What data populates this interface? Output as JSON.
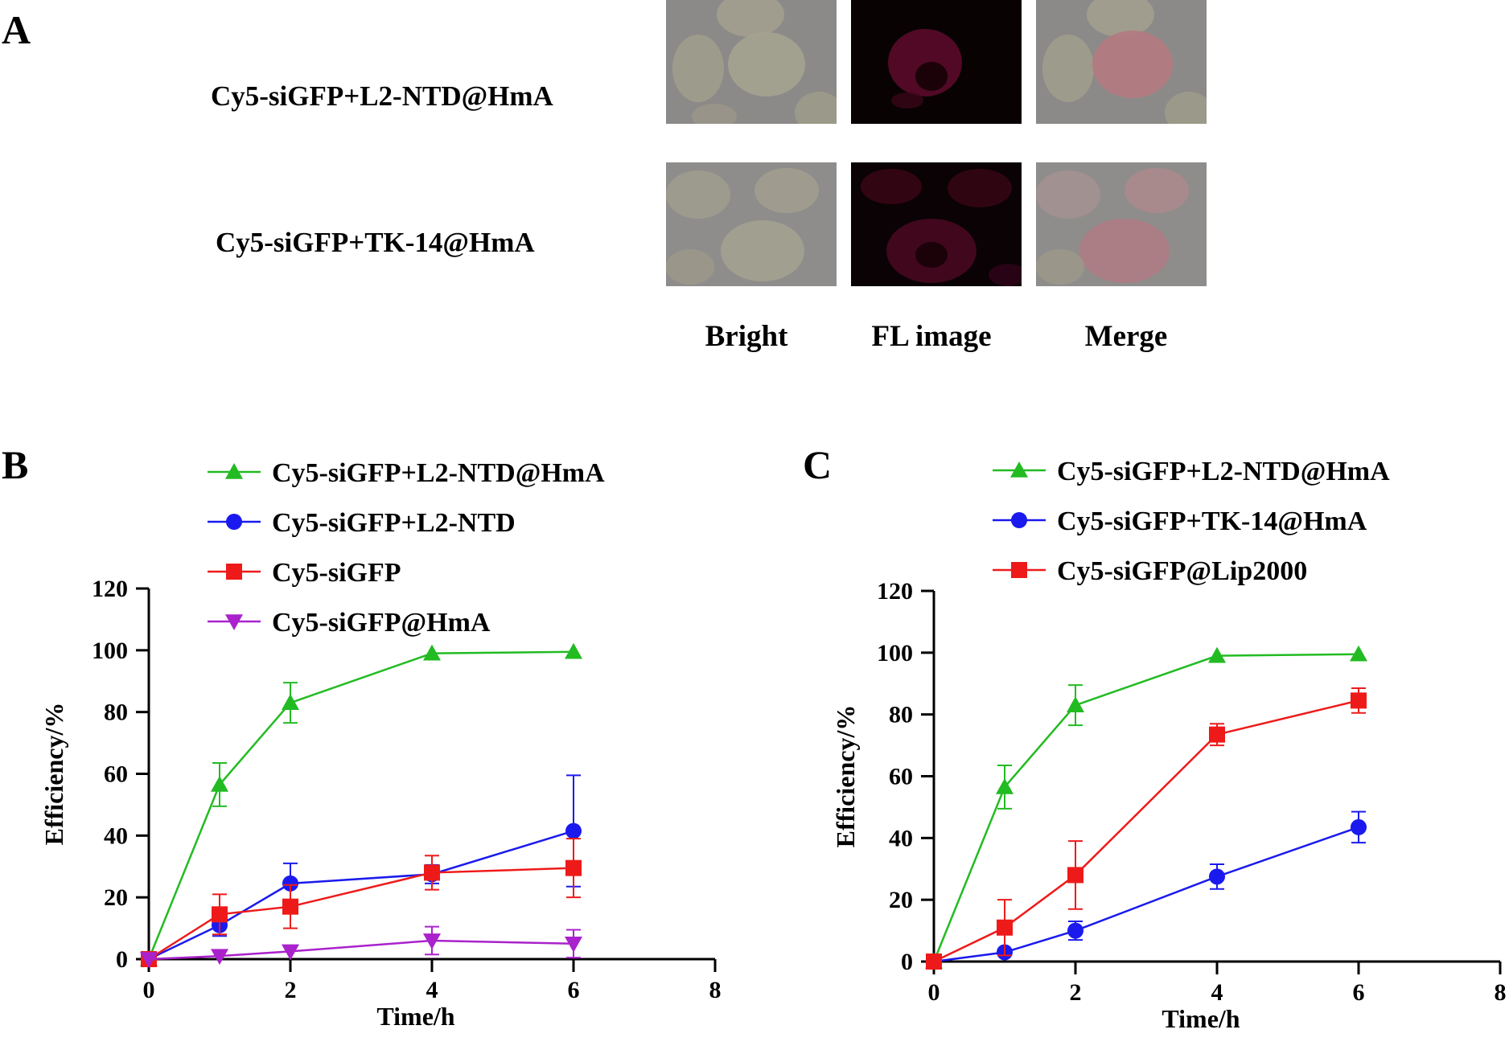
{
  "panel_a": {
    "letter": "A",
    "rows": [
      "Cy5-siGFP+L2-NTD@HmA",
      "Cy5-siGFP+TK-14@HmA"
    ],
    "columns": [
      "Bright",
      "FL image",
      "Merge"
    ]
  },
  "colors": {
    "green": "#22bb22",
    "blue": "#1a1aee",
    "red": "#ee1a1a",
    "purple": "#aa22cc"
  },
  "chart_data": [
    {
      "panel": "B",
      "type": "line",
      "xlabel": "Time/h",
      "ylabel": "Efficiency/%",
      "xlim": [
        0,
        8
      ],
      "ylim": [
        0,
        120
      ],
      "xticks": [
        0,
        2,
        4,
        6,
        8
      ],
      "yticks": [
        0,
        20,
        40,
        60,
        80,
        100,
        120
      ],
      "legend_position": "top",
      "series": [
        {
          "name": "Cy5-siGFP+L2-NTD@HmA",
          "color": "#22bb22",
          "marker": "triangle-up",
          "x": [
            0,
            1,
            2,
            4,
            6
          ],
          "y": [
            0,
            56.5,
            83,
            99,
            99.5
          ],
          "err": [
            0,
            7,
            6.5,
            0,
            0
          ]
        },
        {
          "name": "Cy5-siGFP+L2-NTD",
          "color": "#1a1aee",
          "marker": "circle",
          "x": [
            0,
            1,
            2,
            4,
            6
          ],
          "y": [
            0,
            11,
            24.5,
            27.5,
            41.5
          ],
          "err": [
            0,
            3.5,
            6.5,
            3,
            18
          ]
        },
        {
          "name": "Cy5-siGFP",
          "color": "#ee1a1a",
          "marker": "square",
          "x": [
            0,
            1,
            2,
            4,
            6
          ],
          "y": [
            0,
            14.5,
            17,
            28,
            29.5
          ],
          "err": [
            0,
            6.5,
            7,
            5.5,
            9.5
          ]
        },
        {
          "name": "Cy5-siGFP@HmA",
          "color": "#aa22cc",
          "marker": "triangle-down",
          "x": [
            0,
            1,
            2,
            4,
            6
          ],
          "y": [
            0,
            1,
            2.5,
            6,
            5
          ],
          "err": [
            0,
            0,
            0,
            4.5,
            4.5
          ]
        }
      ]
    },
    {
      "panel": "C",
      "type": "line",
      "xlabel": "Time/h",
      "ylabel": "Efficiency/%",
      "xlim": [
        0,
        8
      ],
      "ylim": [
        0,
        120
      ],
      "xticks": [
        0,
        2,
        4,
        6,
        8
      ],
      "yticks": [
        0,
        20,
        40,
        60,
        80,
        100,
        120
      ],
      "legend_position": "top",
      "series": [
        {
          "name": "Cy5-siGFP+L2-NTD@HmA",
          "color": "#22bb22",
          "marker": "triangle-up",
          "x": [
            0,
            1,
            2,
            4,
            6
          ],
          "y": [
            0,
            56.5,
            83,
            99,
            99.5
          ],
          "err": [
            0,
            7,
            6.5,
            0,
            0
          ]
        },
        {
          "name": "Cy5-siGFP+TK-14@HmA",
          "color": "#1a1aee",
          "marker": "circle",
          "x": [
            0,
            1,
            2,
            4,
            6
          ],
          "y": [
            0,
            3,
            10,
            27.5,
            43.5
          ],
          "err": [
            0,
            0,
            3,
            4,
            5
          ]
        },
        {
          "name": "Cy5-siGFP@Lip2000",
          "color": "#ee1a1a",
          "marker": "square",
          "x": [
            0,
            1,
            2,
            4,
            6
          ],
          "y": [
            0,
            11,
            28,
            73.5,
            84.5
          ],
          "err": [
            0,
            9,
            11,
            3.5,
            4
          ]
        }
      ]
    }
  ]
}
